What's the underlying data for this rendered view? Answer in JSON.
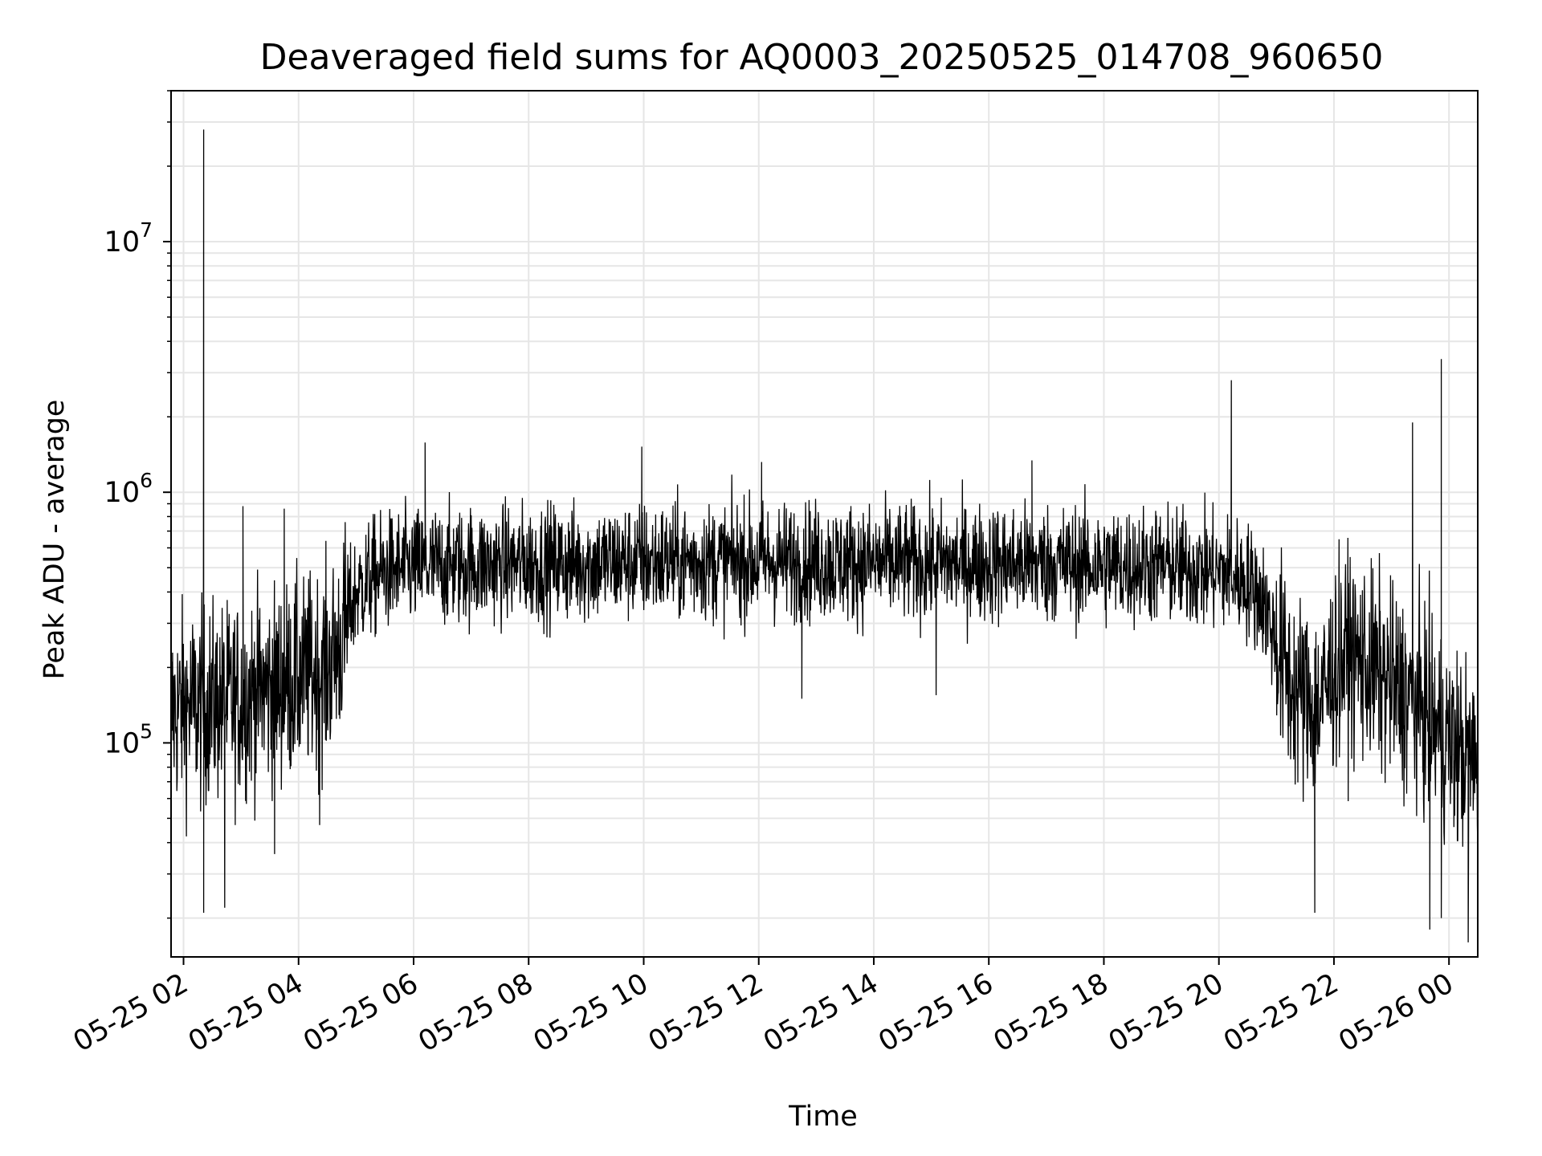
{
  "chart_data": {
    "type": "line",
    "title": "Deaveraged field sums for AQ0003_20250525_014708_960650",
    "xlabel": "Time",
    "ylabel": "Peak ADU - average",
    "yscale": "log",
    "ylim": [
      14000,
      40000000
    ],
    "xlim": [
      "2025-05-25 01:47",
      "2025-05-26 00:30"
    ],
    "grid": true,
    "line_color": "#000000",
    "grid_color": "#e6e6e6",
    "x_ticks": [
      {
        "value": "2025-05-25 02:00",
        "label": "05-25 02"
      },
      {
        "value": "2025-05-25 04:00",
        "label": "05-25 04"
      },
      {
        "value": "2025-05-25 06:00",
        "label": "05-25 06"
      },
      {
        "value": "2025-05-25 08:00",
        "label": "05-25 08"
      },
      {
        "value": "2025-05-25 10:00",
        "label": "05-25 10"
      },
      {
        "value": "2025-05-25 12:00",
        "label": "05-25 12"
      },
      {
        "value": "2025-05-25 14:00",
        "label": "05-25 14"
      },
      {
        "value": "2025-05-25 16:00",
        "label": "05-25 16"
      },
      {
        "value": "2025-05-25 18:00",
        "label": "05-25 18"
      },
      {
        "value": "2025-05-25 20:00",
        "label": "05-25 20"
      },
      {
        "value": "2025-05-25 22:00",
        "label": "05-25 22"
      },
      {
        "value": "2025-05-26 00:00",
        "label": "05-26 00"
      }
    ],
    "y_ticks": [
      {
        "value": 100000,
        "base": "10",
        "exp": "5"
      },
      {
        "value": 1000000,
        "base": "10",
        "exp": "6"
      },
      {
        "value": 10000000,
        "base": "10",
        "exp": "7"
      }
    ],
    "series": [
      {
        "x": [
          "2025-05-25 01:47",
          "2025-05-25 02:00",
          "2025-05-25 02:15",
          "2025-05-25 02:30",
          "2025-05-25 02:45",
          "2025-05-25 03:00",
          "2025-05-25 03:15",
          "2025-05-25 03:30",
          "2025-05-25 03:45",
          "2025-05-25 04:00",
          "2025-05-25 04:15",
          "2025-05-25 04:30",
          "2025-05-25 04:45",
          "2025-05-25 05:00",
          "2025-05-25 05:15",
          "2025-05-25 05:30",
          "2025-05-25 06:00",
          "2025-05-25 07:00",
          "2025-05-25 08:00",
          "2025-05-25 09:00",
          "2025-05-25 10:00",
          "2025-05-25 11:00",
          "2025-05-25 12:00",
          "2025-05-25 13:00",
          "2025-05-25 14:00",
          "2025-05-25 15:00",
          "2025-05-25 16:00",
          "2025-05-25 17:00",
          "2025-05-25 18:00",
          "2025-05-25 19:00",
          "2025-05-25 20:00",
          "2025-05-25 20:30",
          "2025-05-25 20:45",
          "2025-05-25 21:00",
          "2025-05-25 21:15",
          "2025-05-25 21:30",
          "2025-05-25 21:45",
          "2025-05-25 22:00",
          "2025-05-25 22:15",
          "2025-05-25 22:30",
          "2025-05-25 23:00",
          "2025-05-25 23:30",
          "2025-05-26 00:00",
          "2025-05-26 00:30"
        ],
        "typical": [
          130000,
          140000,
          140000,
          145000,
          145000,
          150000,
          160000,
          165000,
          175000,
          180000,
          190000,
          200000,
          260000,
          400000,
          450000,
          480000,
          500000,
          510000,
          520000,
          520000,
          530000,
          530000,
          530000,
          530000,
          520000,
          520000,
          520000,
          520000,
          510000,
          510000,
          480000,
          440000,
          380000,
          250000,
          170000,
          150000,
          140000,
          200000,
          230000,
          210000,
          170000,
          140000,
          100000,
          80000
        ],
        "peaks": [
          {
            "x": "2025-05-25 02:21",
            "y": 28000000
          },
          {
            "x": "2025-05-25 02:21",
            "y": 1050000
          },
          {
            "x": "2025-05-25 03:02",
            "y": 880000
          },
          {
            "x": "2025-05-25 03:45",
            "y": 860000
          },
          {
            "x": "2025-05-25 06:12",
            "y": 1580000
          },
          {
            "x": "2025-05-25 09:58",
            "y": 1520000
          },
          {
            "x": "2025-05-25 12:03",
            "y": 1320000
          },
          {
            "x": "2025-05-25 16:45",
            "y": 1340000
          },
          {
            "x": "2025-05-25 20:13",
            "y": 2800000
          },
          {
            "x": "2025-05-25 23:52",
            "y": 3400000
          },
          {
            "x": "2025-05-25 23:22",
            "y": 1900000
          }
        ],
        "dips": [
          {
            "x": "2025-05-25 02:21",
            "y": 21000
          },
          {
            "x": "2025-05-25 02:43",
            "y": 22000
          },
          {
            "x": "2025-05-25 03:35",
            "y": 36000
          },
          {
            "x": "2025-05-25 04:22",
            "y": 47000
          },
          {
            "x": "2025-05-25 12:45",
            "y": 150000
          },
          {
            "x": "2025-05-25 15:05",
            "y": 155000
          },
          {
            "x": "2025-05-25 21:40",
            "y": 21000
          },
          {
            "x": "2025-05-25 23:40",
            "y": 18000
          },
          {
            "x": "2025-05-25 23:52",
            "y": 20000
          },
          {
            "x": "2025-05-26 00:20",
            "y": 16000
          }
        ]
      }
    ]
  }
}
